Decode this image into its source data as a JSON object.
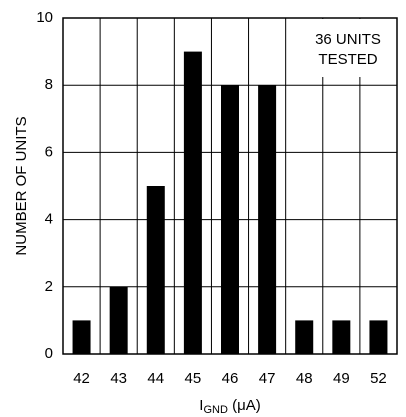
{
  "chart_data": {
    "type": "bar",
    "categories": [
      "42",
      "43",
      "44",
      "45",
      "46",
      "47",
      "48",
      "49",
      "52"
    ],
    "values": [
      1,
      2,
      5,
      9,
      8,
      8,
      1,
      1,
      1
    ],
    "color": "#000000",
    "ylim": [
      0,
      10
    ],
    "yticks": [
      0,
      2,
      4,
      6,
      8,
      10
    ],
    "grid": true,
    "y_label": "NUMBER OF UNITS",
    "x_label": {
      "main": "I",
      "sub": "GND",
      "rest": " (μA)"
    },
    "annotation": [
      "36 UNITS",
      "TESTED"
    ]
  }
}
